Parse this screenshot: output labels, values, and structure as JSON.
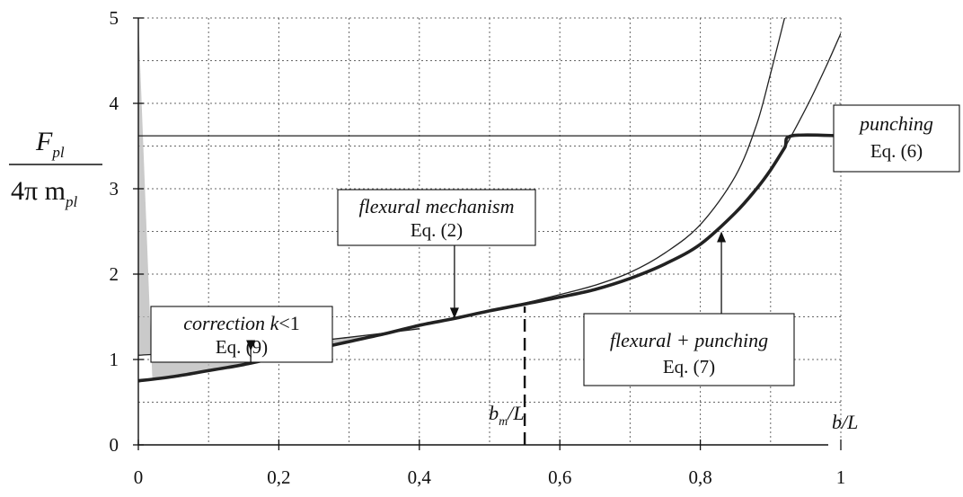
{
  "chart_data": {
    "type": "line",
    "xlabel": "b/L",
    "ylabel": {
      "numerator_main": "F",
      "numerator_sub": "pl",
      "denominator_main": "4π m",
      "denominator_sub": "pl"
    },
    "xlim": [
      0,
      1
    ],
    "ylim": [
      0,
      5
    ],
    "x_ticks": [
      0,
      0.2,
      0.4,
      0.6,
      0.8,
      1
    ],
    "x_tick_labels": [
      "0",
      "0,2",
      "0,4",
      "0,6",
      "0,8",
      "1"
    ],
    "y_ticks": [
      0,
      1,
      2,
      3,
      4,
      5
    ],
    "y_tick_labels": [
      "0",
      "1",
      "2",
      "3",
      "4",
      "5"
    ],
    "grid": true,
    "series": [
      {
        "key": "flexural",
        "style": "thin",
        "x": [
          0,
          0.05,
          0.1,
          0.15,
          0.2,
          0.25,
          0.3,
          0.35,
          0.4,
          0.45,
          0.5,
          0.55,
          0.6,
          0.65,
          0.7,
          0.75,
          0.8,
          0.85,
          0.88,
          0.9,
          0.92
        ],
        "y": [
          0.75,
          0.8,
          0.87,
          0.94,
          1.03,
          1.12,
          1.21,
          1.3,
          1.4,
          1.48,
          1.57,
          1.66,
          1.76,
          1.87,
          2.02,
          2.25,
          2.58,
          3.15,
          3.75,
          4.35,
          5.0
        ]
      },
      {
        "key": "flexural_punching",
        "style": "thin",
        "x": [
          0.55,
          0.6,
          0.65,
          0.7,
          0.75,
          0.8,
          0.85,
          0.88,
          0.9,
          0.92,
          0.94,
          0.96,
          0.98,
          1.0
        ],
        "y": [
          1.65,
          1.73,
          1.82,
          1.95,
          2.12,
          2.35,
          2.72,
          3.0,
          3.22,
          3.48,
          3.78,
          4.1,
          4.45,
          4.82
        ]
      },
      {
        "key": "punching",
        "style": "thin",
        "x": [
          0,
          1
        ],
        "y": [
          3.62,
          3.62
        ]
      },
      {
        "key": "corrected_upper",
        "style": "thin",
        "x": [
          0,
          0.1,
          0.2,
          0.3,
          0.4
        ],
        "y": [
          1.05,
          1.1,
          1.17,
          1.26,
          1.36
        ]
      },
      {
        "key": "envelope",
        "style": "thick",
        "x": [
          0,
          0.05,
          0.1,
          0.15,
          0.2,
          0.25,
          0.3,
          0.35,
          0.4,
          0.45,
          0.5,
          0.55,
          0.6,
          0.65,
          0.7,
          0.75,
          0.8,
          0.85,
          0.88,
          0.9,
          0.92,
          0.93,
          1.0
        ],
        "y": [
          0.75,
          0.8,
          0.87,
          0.94,
          1.03,
          1.12,
          1.21,
          1.3,
          1.4,
          1.48,
          1.57,
          1.65,
          1.73,
          1.82,
          1.95,
          2.12,
          2.35,
          2.72,
          3.0,
          3.22,
          3.48,
          3.62,
          3.62
        ]
      }
    ],
    "shaded_region": {
      "x_from": 0,
      "x_to": 0.4,
      "color": "#b8b8b8"
    },
    "marker_line": {
      "x": 0.55,
      "y_from": 0,
      "y_to": 1.62,
      "label_main": "b",
      "label_sub": "m",
      "label_rest": "/L"
    },
    "annotations": [
      {
        "key": "correction",
        "line1_a": "correction ",
        "line1_b": "k",
        "line1_c": "<1",
        "line2": "Eq. (9)",
        "arrow_to": [
          0.16,
          1.1
        ]
      },
      {
        "key": "flexural_mech",
        "line1": "flexural mechanism",
        "line2": "Eq. (2)",
        "arrow_to": [
          0.45,
          1.48
        ]
      },
      {
        "key": "punching",
        "line1": "punching",
        "line2": "Eq. (6)"
      },
      {
        "key": "flex_punch",
        "line1": "flexural + punching",
        "line2": "Eq. (7)",
        "arrow_to": [
          0.83,
          2.5
        ]
      }
    ],
    "colors": {
      "line": "#222222",
      "grid": "#666666",
      "shade": "#b8b8b8"
    }
  }
}
